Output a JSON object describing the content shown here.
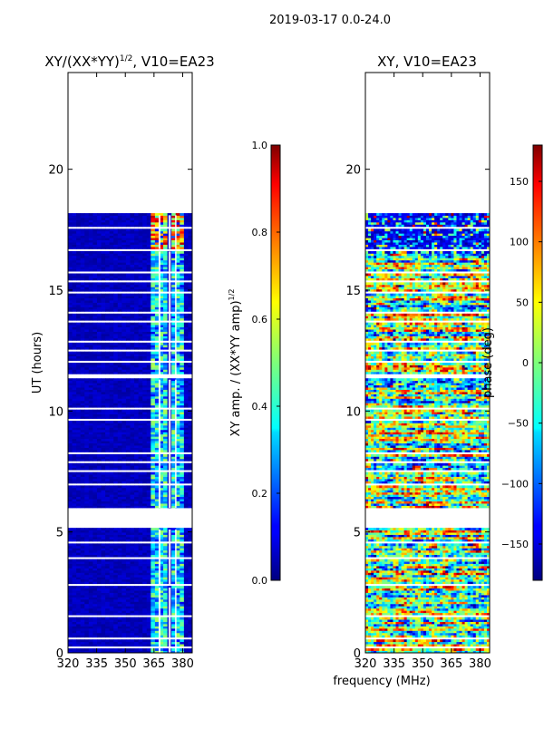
{
  "suptitle": "2019-03-17 0.0-24.0",
  "colors": {
    "no_data": "#ffffff",
    "frame": "#000000",
    "jet_low": "#00007f",
    "jet_high": "#7f0000"
  },
  "chart_data": [
    {
      "type": "heatmap",
      "name": "amplitude-panel",
      "title": "XY/(XX*YY)",
      "title_exponent": "1/2",
      "title_suffix": ", V10=EA23",
      "ylabel": "UT (hours)",
      "xlim": [
        320,
        385
      ],
      "ylim": [
        0,
        24
      ],
      "xticks": [
        320,
        335,
        350,
        365,
        380
      ],
      "yticks": [
        0,
        5,
        10,
        15,
        20
      ],
      "bright_channels": [
        [
          363.2,
          367.4
        ],
        [
          368.4,
          372.6
        ],
        [
          373.8,
          376.0
        ],
        [
          376.8,
          381.0
        ]
      ],
      "notes": "Mostly dark blue (~0.0-0.1); channels above ~363 MHz show 0.3-0.5, with values up to ~0.9 near 16.5-18 UT."
    },
    {
      "type": "colorbar",
      "name": "amplitude-colorbar",
      "label": "XY amp. / (XX*YY amp)",
      "label_exponent": "1/2",
      "range": [
        0.0,
        1.0
      ],
      "ticks": [
        "0.0",
        "0.2",
        "0.4",
        "0.6",
        "0.8",
        "1.0"
      ],
      "tick_values": [
        0.0,
        0.2,
        0.4,
        0.6,
        0.8,
        1.0
      ],
      "colormap": "jet"
    },
    {
      "type": "heatmap",
      "name": "phase-panel",
      "title": "XY, V10=EA23",
      "xlabel": "frequency (MHz)",
      "xlim": [
        320,
        385
      ],
      "ylim": [
        0,
        24
      ],
      "xticks": [
        320,
        335,
        350,
        365,
        380
      ],
      "yticks": [
        0,
        5,
        10,
        15,
        20
      ],
      "notes": "Phase varies widely across -180 to 180 degrees; noisy mixture of all colors."
    },
    {
      "type": "colorbar",
      "name": "phase-colorbar",
      "label": "phase (deg)",
      "range": [
        -180,
        180
      ],
      "ticks": [
        "−150",
        "−100",
        "−50",
        "0",
        "50",
        "100",
        "150"
      ],
      "tick_values": [
        -150,
        -100,
        -50,
        0,
        50,
        100,
        150
      ],
      "colormap": "jet"
    }
  ],
  "time_coverage": {
    "data_bands_hours": [
      [
        0.0,
        2.7
      ],
      [
        2.8,
        5.1
      ],
      [
        6.0,
        11.3
      ],
      [
        11.5,
        16.6
      ],
      [
        16.7,
        18.1
      ]
    ],
    "gap_rows_hours": [
      0.2,
      0.55,
      0.8,
      1.15,
      1.5,
      1.7,
      2.25,
      2.45,
      3.1,
      3.55,
      3.9,
      4.2,
      4.55,
      6.4,
      6.9,
      7.5,
      7.85,
      8.2,
      8.55,
      8.9,
      9.6,
      10.05,
      10.75,
      12.0,
      12.45,
      12.85,
      13.25,
      13.65,
      14.05,
      14.45,
      14.85,
      15.3,
      15.7,
      16.1,
      16.95,
      17.55,
      17.85,
      17.97
    ]
  }
}
